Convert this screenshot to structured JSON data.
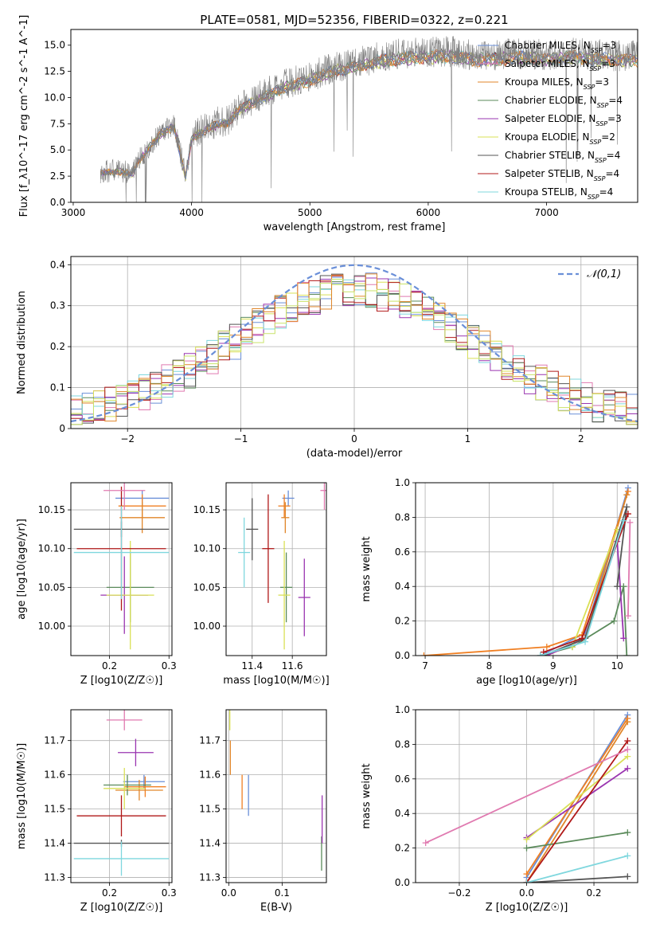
{
  "figure_title": "PLATE=0581, MJD=52356, FIBERID=0322, z=0.221",
  "colors": [
    "#6a8fd8",
    "#f07f22",
    "#e0862a",
    "#5a8a5a",
    "#9a35b0",
    "#d9e056",
    "#555555",
    "#b01818",
    "#7fd7de",
    "#e07ab0"
  ],
  "chart_data": [
    {
      "id": "spectrum",
      "type": "line",
      "xlabel": "wavelength [Angstrom, rest frame]",
      "ylabel": "Flux [f_λ10^-17 erg cm^-2 s^-1 A^-1]",
      "xlim": [
        2980,
        7770
      ],
      "ylim": [
        0,
        16.5
      ],
      "xticks": [
        "3000",
        "4000",
        "5000",
        "6000",
        "7000"
      ],
      "yticks": [
        "0.0",
        "2.5",
        "5.0",
        "7.5",
        "10.0",
        "12.5",
        "15.0"
      ],
      "grid": false,
      "legend_position": "right",
      "observed_spectrum": {
        "x": [
          3230,
          3300,
          3400,
          3500,
          3550,
          3650,
          3750,
          3850,
          3950,
          4000,
          4100,
          4200,
          4300,
          4400,
          4500,
          4600,
          4800,
          5000,
          5200,
          5400,
          5600,
          5800,
          6000,
          6200,
          6400,
          6600,
          6800,
          7000,
          7200,
          7400,
          7600,
          7770
        ],
        "y": [
          2.9,
          3.0,
          3.0,
          2.8,
          4.0,
          5.5,
          6.8,
          7.5,
          2.5,
          6.2,
          7.0,
          7.6,
          7.8,
          9.0,
          9.7,
          10.3,
          11.3,
          12.0,
          12.9,
          13.3,
          13.9,
          14.2,
          14.3,
          14.4,
          14.0,
          14.1,
          14.3,
          14.0,
          14.3,
          14.1,
          14.0,
          14.0
        ]
      },
      "series": [
        {
          "name": "Chabrier MILES, N_SSP=3"
        },
        {
          "name": "Salpeter MILES, N_SSP=3"
        },
        {
          "name": "Kroupa MILES, N_SSP=3"
        },
        {
          "name": "Chabrier ELODIE, N_SSP=4"
        },
        {
          "name": "Salpeter ELODIE, N_SSP=3"
        },
        {
          "name": "Kroupa ELODIE, N_SSP=2"
        },
        {
          "name": "Chabrier STELIB, N_SSP=4"
        },
        {
          "name": "Salpeter STELIB, N_SSP=4"
        },
        {
          "name": "Kroupa STELIB, N_SSP=4"
        }
      ]
    },
    {
      "id": "residuals",
      "type": "line",
      "xlabel": "(data-model)/error",
      "ylabel": "Normed distribution",
      "xlim": [
        -2.5,
        2.5
      ],
      "ylim": [
        0,
        0.42
      ],
      "xticks": [
        -2,
        -1,
        0,
        1,
        2
      ],
      "yticks": [
        0.0,
        0.1,
        0.2,
        0.3,
        0.4
      ],
      "grid": true,
      "legend_position": "top-right",
      "series": [
        {
          "name": "𝒩(0,1)",
          "style": "dashed gaussian"
        }
      ]
    },
    {
      "id": "age-vs-Z",
      "type": "scatter",
      "xlabel": "Z [log10(Z/Z☉)]",
      "ylabel": "age  [log10(age/yr)]",
      "xlim": [
        0.135,
        0.305
      ],
      "ylim": [
        9.962,
        10.185
      ],
      "xticks": [
        0.2,
        0.3
      ],
      "yticks": [
        "10.00",
        "10.05",
        "10.10",
        "10.15"
      ],
      "grid": true,
      "points": [
        {
          "x": 0.255,
          "y": 10.165,
          "xerr": 0.045,
          "yerr": 0.01
        },
        {
          "x": 0.255,
          "y": 10.155,
          "xerr": 0.04,
          "yerr": 0.015
        },
        {
          "x": 0.255,
          "y": 10.14,
          "xerr": 0.038,
          "yerr": 0.02
        },
        {
          "x": 0.235,
          "y": 10.05,
          "xerr": 0.04,
          "yerr": 0.045
        },
        {
          "x": 0.225,
          "y": 10.04,
          "xerr": 0.04,
          "yerr": 0.05
        },
        {
          "x": 0.235,
          "y": 10.04,
          "xerr": 0.04,
          "yerr": 0.07
        },
        {
          "x": 0.22,
          "y": 10.125,
          "xerr": 0.08,
          "yerr": 0.01
        },
        {
          "x": 0.22,
          "y": 10.1,
          "xerr": 0.075,
          "yerr": 0.08
        },
        {
          "x": 0.22,
          "y": 10.095,
          "xerr": 0.08,
          "yerr": 0.06
        },
        {
          "x": 0.225,
          "y": 10.175,
          "xerr": 0.035,
          "yerr": 0.025
        }
      ]
    },
    {
      "id": "age-vs-mass",
      "type": "scatter",
      "xlabel": "mass [log10(M/M☉)]",
      "ylabel": "",
      "xlim": [
        11.27,
        11.77
      ],
      "ylim": [
        9.962,
        10.185
      ],
      "xticks": [
        11.4,
        11.6
      ],
      "yticks": [
        "10.00",
        "10.05",
        "10.10",
        "10.15"
      ],
      "grid": true,
      "points": [
        {
          "x": 11.58,
          "y": 10.165,
          "xerr": 0.03,
          "yerr": 0.01
        },
        {
          "x": 11.56,
          "y": 10.155,
          "xerr": 0.03,
          "yerr": 0.015
        },
        {
          "x": 11.565,
          "y": 10.14,
          "xerr": 0.02,
          "yerr": 0.02
        },
        {
          "x": 11.57,
          "y": 10.05,
          "xerr": 0.03,
          "yerr": 0.045
        },
        {
          "x": 11.66,
          "y": 10.037,
          "xerr": 0.03,
          "yerr": 0.05
        },
        {
          "x": 11.56,
          "y": 10.04,
          "xerr": 0.03,
          "yerr": 0.07
        },
        {
          "x": 11.4,
          "y": 10.125,
          "xerr": 0.03,
          "yerr": 0.04
        },
        {
          "x": 11.48,
          "y": 10.1,
          "xerr": 0.03,
          "yerr": 0.07
        },
        {
          "x": 11.36,
          "y": 10.095,
          "xerr": 0.03,
          "yerr": 0.045
        },
        {
          "x": 11.76,
          "y": 10.175,
          "xerr": 0.02,
          "yerr": 0.025
        }
      ]
    },
    {
      "id": "weight-vs-age",
      "type": "line",
      "xlabel": "age  [log10(age/yr)]",
      "ylabel": "mass weight",
      "xlim": [
        6.85,
        10.32
      ],
      "ylim": [
        0,
        1.0
      ],
      "xticks": [
        7,
        8,
        9,
        10
      ],
      "yticks": [
        "0.0",
        "0.2",
        "0.4",
        "0.6",
        "0.8",
        "1.0"
      ],
      "grid": true,
      "series": [
        {
          "x": [
            8.8,
            9.5,
            10.17
          ],
          "y": [
            0.0,
            0.13,
            0.97
          ]
        },
        {
          "x": [
            6.98,
            8.9,
            9.45,
            10.17
          ],
          "y": [
            0.0,
            0.05,
            0.12,
            0.95
          ]
        },
        {
          "x": [
            8.9,
            9.5,
            10.15
          ],
          "y": [
            0.0,
            0.1,
            0.93
          ]
        },
        {
          "x": [
            8.8,
            9.3,
            9.95,
            10.1,
            10.15
          ],
          "y": [
            0.0,
            0.05,
            0.2,
            0.4,
            0.0
          ]
        },
        {
          "x": [
            8.9,
            9.5,
            10.0,
            10.1
          ],
          "y": [
            0.0,
            0.1,
            0.66,
            0.1
          ]
        },
        {
          "x": [
            9.3,
            10.0
          ],
          "y": [
            0.05,
            0.73
          ]
        },
        {
          "x": [
            8.85,
            9.5,
            10.15,
            10.0
          ],
          "y": [
            0.0,
            0.1,
            0.86,
            0.4
          ]
        },
        {
          "x": [
            8.85,
            9.45,
            10.17
          ],
          "y": [
            0.02,
            0.1,
            0.82
          ]
        },
        {
          "x": [
            8.8,
            9.5,
            10.1
          ],
          "y": [
            0.0,
            0.08,
            0.78
          ]
        },
        {
          "x": [
            10.17,
            10.2
          ],
          "y": [
            0.23,
            0.77
          ]
        }
      ]
    },
    {
      "id": "mass-vs-Z",
      "type": "scatter",
      "xlabel": "Z [log10(Z/Z☉)]",
      "ylabel": "mass [log10(M/M☉)]",
      "xlim": [
        0.135,
        0.305
      ],
      "ylim": [
        11.285,
        11.79
      ],
      "xticks": [
        0.2,
        0.3
      ],
      "yticks": [
        "11.3",
        "11.4",
        "11.5",
        "11.6",
        "11.7"
      ],
      "grid": true,
      "points": [
        {
          "x": 0.258,
          "y": 11.58,
          "xerr": 0.035,
          "yerr": 0.02
        },
        {
          "x": 0.26,
          "y": 11.565,
          "xerr": 0.035,
          "yerr": 0.03
        },
        {
          "x": 0.25,
          "y": 11.555,
          "xerr": 0.04,
          "yerr": 0.03
        },
        {
          "x": 0.23,
          "y": 11.57,
          "xerr": 0.04,
          "yerr": 0.03
        },
        {
          "x": 0.244,
          "y": 11.665,
          "xerr": 0.03,
          "yerr": 0.04
        },
        {
          "x": 0.225,
          "y": 11.56,
          "xerr": 0.035,
          "yerr": 0.06
        },
        {
          "x": 0.22,
          "y": 11.4,
          "xerr": 0.08,
          "yerr": 0.01
        },
        {
          "x": 0.22,
          "y": 11.48,
          "xerr": 0.075,
          "yerr": 0.06
        },
        {
          "x": 0.22,
          "y": 11.355,
          "xerr": 0.08,
          "yerr": 0.05
        },
        {
          "x": 0.225,
          "y": 11.76,
          "xerr": 0.03,
          "yerr": 0.03
        }
      ]
    },
    {
      "id": "mass-vs-EBV",
      "type": "scatter",
      "xlabel": "E(B-V)",
      "ylabel": "",
      "xlim": [
        -0.005,
        0.183
      ],
      "ylim": [
        11.285,
        11.79
      ],
      "xticks": [
        "0.0",
        "0.1"
      ],
      "yticks": [
        "11.3",
        "11.4",
        "11.5",
        "11.6",
        "11.7"
      ],
      "grid": true,
      "points": [
        {
          "x": 0.037,
          "y": 11.54,
          "xerr": 0.0,
          "yerr": 0.06
        },
        {
          "x": 0.025,
          "y": 11.55,
          "xerr": 0.0,
          "yerr": 0.05
        },
        {
          "x": 0.003,
          "y": 11.65,
          "xerr": 0.0,
          "yerr": 0.05
        },
        {
          "x": 0.174,
          "y": 11.37,
          "xerr": 0.0,
          "yerr": 0.05
        },
        {
          "x": 0.175,
          "y": 11.47,
          "xerr": 0.0,
          "yerr": 0.07
        },
        {
          "x": 0.002,
          "y": 11.76,
          "xerr": 0.0,
          "yerr": 0.03
        }
      ]
    },
    {
      "id": "weight-vs-Z",
      "type": "line",
      "xlabel": "Z [log10(Z/Z☉)]",
      "ylabel": "mass weight",
      "xlim": [
        -0.33,
        0.33
      ],
      "ylim": [
        0,
        1.0
      ],
      "xticks": [
        "−0.2",
        "0.0",
        "0.2"
      ],
      "yticks": [
        "0.0",
        "0.2",
        "0.4",
        "0.6",
        "0.8",
        "1.0"
      ],
      "grid": true,
      "series": [
        {
          "x": [
            0.0,
            0.3
          ],
          "y": [
            0.03,
            0.97
          ]
        },
        {
          "x": [
            0.0,
            0.3
          ],
          "y": [
            0.05,
            0.95
          ]
        },
        {
          "x": [
            0.0,
            0.3
          ],
          "y": [
            0.0,
            0.93
          ]
        },
        {
          "x": [
            0.0,
            0.3
          ],
          "y": [
            0.2,
            0.29
          ]
        },
        {
          "x": [
            0.0,
            0.3
          ],
          "y": [
            0.26,
            0.66
          ]
        },
        {
          "x": [
            0.0,
            0.3
          ],
          "y": [
            0.25,
            0.73
          ]
        },
        {
          "x": [
            0.0,
            0.3
          ],
          "y": [
            0.0,
            0.035
          ]
        },
        {
          "x": [
            0.0,
            0.3
          ],
          "y": [
            0.0,
            0.82
          ]
        },
        {
          "x": [
            0.0,
            0.3
          ],
          "y": [
            0.0,
            0.155
          ]
        },
        {
          "x": [
            -0.3,
            0.3
          ],
          "y": [
            0.23,
            0.77
          ]
        }
      ]
    }
  ]
}
